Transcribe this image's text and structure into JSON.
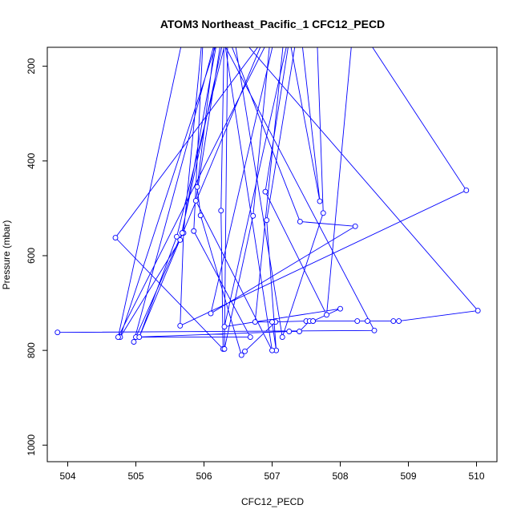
{
  "chart_data": {
    "type": "line",
    "title": "ATOM3 Northeast_Pacific_1 CFC12_PECD",
    "xlabel": "CFC12_PECD",
    "ylabel": "Pressure (mbar)",
    "xlim": [
      503.7,
      510.3
    ],
    "ylim": [
      160,
      1035
    ],
    "y_reversed": true,
    "x_ticks": [
      504,
      505,
      506,
      507,
      508,
      509,
      510
    ],
    "y_ticks": [
      200,
      400,
      600,
      800,
      1000
    ],
    "colors": {
      "series": "#0000ff",
      "axis": "#000000"
    },
    "series": [
      {
        "points": [
          [
            506.2,
            100
          ],
          [
            505.9,
            455
          ],
          [
            505.95,
            515
          ],
          [
            506.55,
            810
          ],
          [
            506.6,
            802
          ],
          [
            507.05,
            740
          ],
          [
            506.75,
            740
          ],
          [
            507.2,
            100
          ],
          [
            507.7,
            485
          ],
          [
            507.4,
            100
          ],
          [
            506.92,
            525
          ],
          [
            507.06,
            800
          ],
          [
            507.0,
            740
          ],
          [
            507.5,
            738
          ],
          [
            507.6,
            738
          ],
          [
            508.0,
            712
          ],
          [
            506.3,
            750
          ],
          [
            507.3,
            100
          ],
          [
            506.9,
            465
          ],
          [
            507.8,
            725
          ],
          [
            508.2,
            100
          ],
          [
            509.85,
            462
          ],
          [
            505.65,
            748
          ],
          [
            505.7,
            552
          ],
          [
            506.0,
            100
          ],
          [
            505.85,
            548
          ],
          [
            506.68,
            772
          ],
          [
            505.0,
            772
          ],
          [
            507.25,
            760
          ],
          [
            507.4,
            760
          ],
          [
            507.55,
            738
          ],
          [
            507.6,
            738
          ],
          [
            508.25,
            738
          ],
          [
            508.4,
            738
          ],
          [
            508.78,
            738
          ],
          [
            508.86,
            738
          ],
          [
            510.02,
            716
          ],
          [
            506.3,
            100
          ],
          [
            506.25,
            505
          ],
          [
            506.28,
            797
          ],
          [
            504.7,
            562
          ],
          [
            507.1,
            100
          ],
          [
            507.65,
            100
          ],
          [
            507.75,
            510
          ],
          [
            507.15,
            772
          ],
          [
            506.4,
            100
          ],
          [
            505.6,
            560
          ],
          [
            505.05,
            772
          ],
          [
            507.0,
            100
          ],
          [
            506.72,
            516
          ],
          [
            506.3,
            797
          ],
          [
            506.35,
            100
          ],
          [
            505.65,
            567
          ],
          [
            504.77,
            772
          ],
          [
            506.3,
            100
          ],
          [
            505.88,
            484
          ],
          [
            507.0,
            800
          ],
          [
            506.25,
            100
          ],
          [
            505.68,
            552
          ],
          [
            504.97,
            782
          ],
          [
            506.25,
            100
          ],
          [
            507.41,
            528
          ],
          [
            508.22,
            538
          ],
          [
            506.1,
            722
          ],
          [
            507.1,
            100
          ],
          [
            504.74,
            772
          ],
          [
            505.75,
            100
          ],
          [
            506.1,
            100
          ],
          [
            508.5,
            758
          ],
          [
            503.85,
            762
          ]
        ]
      }
    ]
  }
}
